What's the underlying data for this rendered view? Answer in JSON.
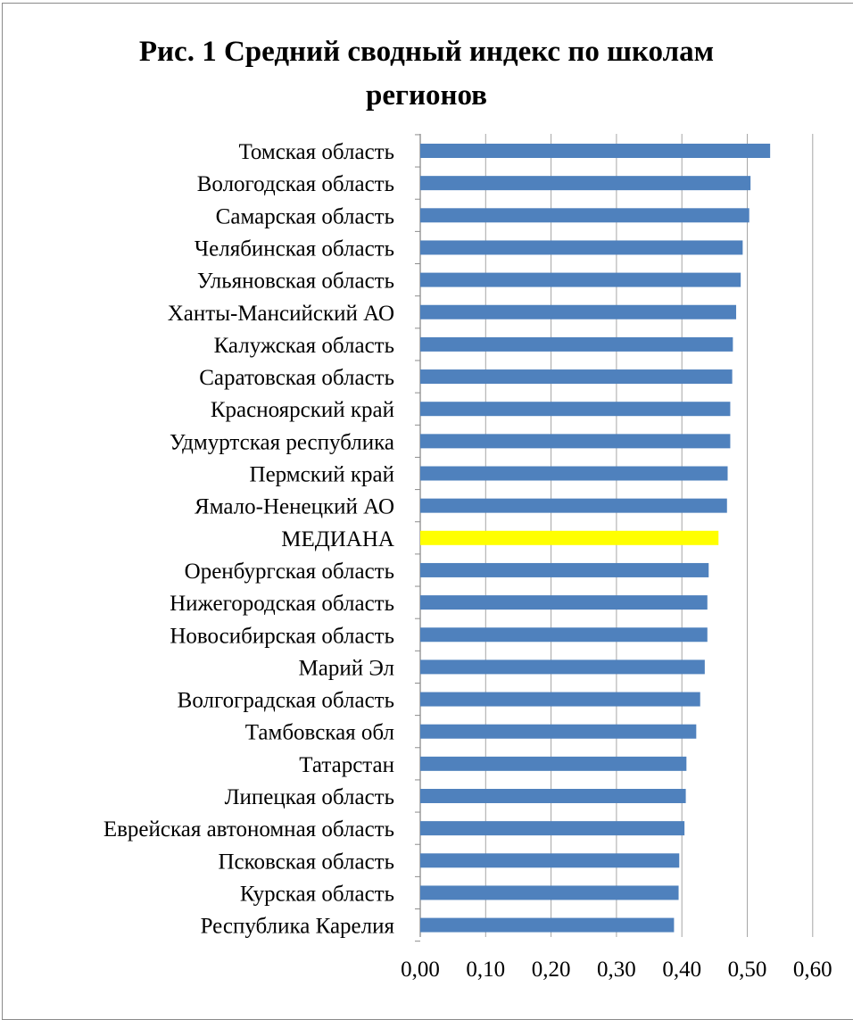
{
  "chart_data": {
    "type": "bar",
    "orientation": "horizontal",
    "title": "Рис. 1 Средний сводный индекс по школам\nрегионов",
    "xlabel": "",
    "ylabel": "",
    "xlim": [
      0,
      0.6
    ],
    "ticks": [
      "0,00",
      "0,10",
      "0,20",
      "0,30",
      "0,40",
      "0,50",
      "0,60"
    ],
    "tick_values": [
      0,
      0.1,
      0.2,
      0.3,
      0.4,
      0.5,
      0.6
    ],
    "grid": "vertical",
    "legend": "none",
    "categories": [
      "Томская область",
      "Вологодская область",
      "Самарская область",
      "Челябинская область",
      "Ульяновская область",
      "Ханты-Мансийский АО",
      "Калужская область",
      "Саратовская область",
      "Красноярский край",
      "Удмуртская республика",
      "Пермский край",
      "Ямало-Ненецкий АО",
      "МЕДИАНА",
      "Оренбургская область",
      "Нижегородская область",
      "Новосибирская область",
      "Марий Эл",
      "Волгоградская область",
      "Тамбовская обл",
      "Татарстан",
      "Липецкая область",
      "Еврейская автономная область",
      "Псковская область",
      "Курская область",
      "Республика Карелия"
    ],
    "values": [
      0.535,
      0.505,
      0.503,
      0.493,
      0.49,
      0.483,
      0.478,
      0.477,
      0.474,
      0.474,
      0.47,
      0.469,
      0.456,
      0.441,
      0.439,
      0.439,
      0.435,
      0.428,
      0.422,
      0.407,
      0.406,
      0.404,
      0.396,
      0.395,
      0.388
    ],
    "colors": {
      "bar": "#4f81bd",
      "highlight": "#ffff00",
      "grid": "#a6a6a6",
      "axis": "#8c8c8c"
    },
    "highlight_category": "МЕДИАНА"
  }
}
